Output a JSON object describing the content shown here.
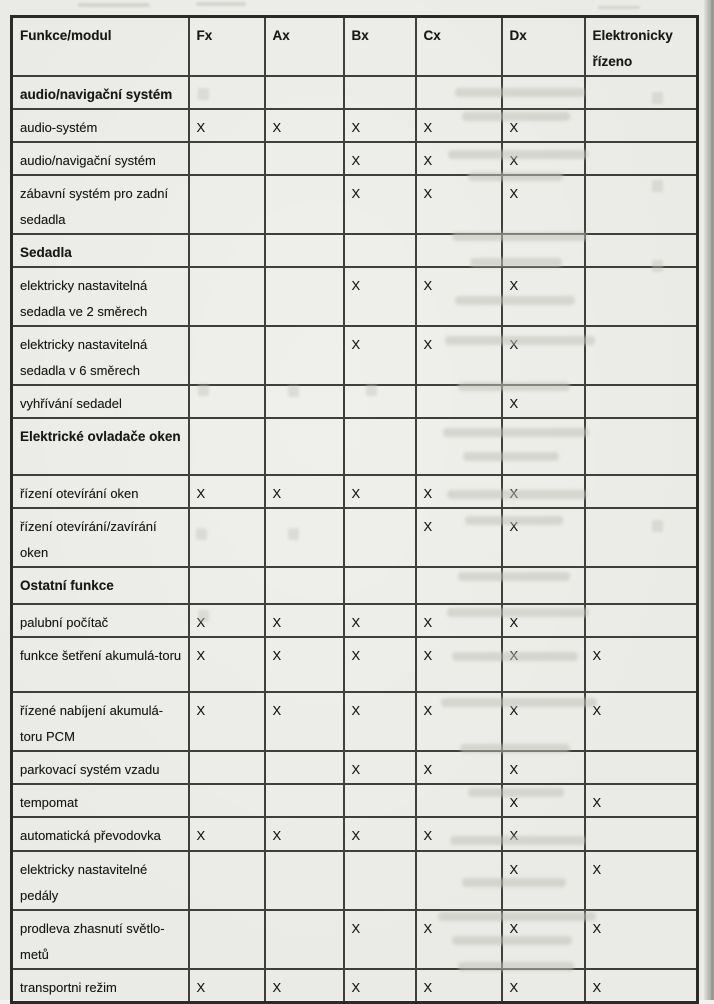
{
  "document": {
    "kind": "scanned service-manual equipment table (Czech)",
    "background_color": "#eaeae6",
    "edge_shadow_color": "#9c9c98",
    "border_color": "#413f3b",
    "text_color": "#181816"
  },
  "table": {
    "columns": [
      "Funkce/modul",
      "Fx",
      "Ax",
      "Bx",
      "Cx",
      "Dx",
      "Elektronicky řízeno"
    ],
    "mark_symbol": "X",
    "rows": [
      {
        "label": "audio/navigační systém",
        "type": "section",
        "marks": [
          "",
          "",
          "",
          "",
          "",
          ""
        ]
      },
      {
        "label": "audio-systém",
        "type": "item",
        "marks": [
          "X",
          "X",
          "X",
          "X",
          "X",
          ""
        ]
      },
      {
        "label": "audio/navigační systém",
        "type": "item",
        "marks": [
          "",
          "",
          "X",
          "X",
          "X",
          ""
        ]
      },
      {
        "label": "zábavní systém pro zadní sedadla",
        "type": "item",
        "marks": [
          "",
          "",
          "X",
          "X",
          "X",
          ""
        ]
      },
      {
        "label": "Sedadla",
        "type": "section",
        "marks": [
          "",
          "",
          "",
          "",
          "",
          ""
        ]
      },
      {
        "label": "elektricky nastavitelná sedadla ve 2 směrech",
        "type": "item",
        "marks": [
          "",
          "",
          "X",
          "X",
          "X",
          ""
        ]
      },
      {
        "label": "elektricky nastavitelná sedadla v 6 směrech",
        "type": "item",
        "marks": [
          "",
          "",
          "X",
          "X",
          "X",
          ""
        ]
      },
      {
        "label": "vyhřívání sedadel",
        "type": "item",
        "marks": [
          "",
          "",
          "",
          "",
          "X",
          ""
        ]
      },
      {
        "label": "Elektrické ovladače oken",
        "type": "section",
        "marks": [
          "",
          "",
          "",
          "",
          "",
          ""
        ]
      },
      {
        "label": "řízení otevírání oken",
        "type": "item",
        "marks": [
          "X",
          "X",
          "X",
          "X",
          "X",
          ""
        ]
      },
      {
        "label": "řízení otevírání/zavírání oken",
        "type": "item",
        "marks": [
          "",
          "",
          "",
          "X",
          "X",
          ""
        ]
      },
      {
        "label": "Ostatní funkce",
        "type": "section",
        "marks": [
          "",
          "",
          "",
          "",
          "",
          ""
        ]
      },
      {
        "label": "palubní počítač",
        "type": "item",
        "marks": [
          "X",
          "X",
          "X",
          "X",
          "X",
          ""
        ]
      },
      {
        "label": "funkce šetření akumulá-toru",
        "type": "item",
        "marks": [
          "X",
          "X",
          "X",
          "X",
          "X",
          "X"
        ]
      },
      {
        "label": "řízené nabíjení akumulá-toru PCM",
        "type": "item",
        "marks": [
          "X",
          "X",
          "X",
          "X",
          "X",
          "X"
        ]
      },
      {
        "label": "parkovací systém vzadu",
        "type": "item",
        "marks": [
          "",
          "",
          "X",
          "X",
          "X",
          ""
        ]
      },
      {
        "label": "tempomat",
        "type": "item",
        "marks": [
          "",
          "",
          "",
          "",
          "X",
          "X"
        ]
      },
      {
        "label": "automatická převodovka",
        "type": "item",
        "marks": [
          "X",
          "X",
          "X",
          "X",
          "X",
          ""
        ]
      },
      {
        "label": "elektricky nastavitelné pedály",
        "type": "item",
        "marks": [
          "",
          "",
          "",
          "",
          "X",
          "X"
        ]
      },
      {
        "label": "prodleva zhasnutí světlo-metů",
        "type": "item",
        "marks": [
          "",
          "",
          "X",
          "X",
          "X",
          "X"
        ]
      },
      {
        "label": "transportni režim",
        "type": "item",
        "marks": [
          "X",
          "X",
          "X",
          "X",
          "X",
          "X"
        ]
      }
    ]
  }
}
